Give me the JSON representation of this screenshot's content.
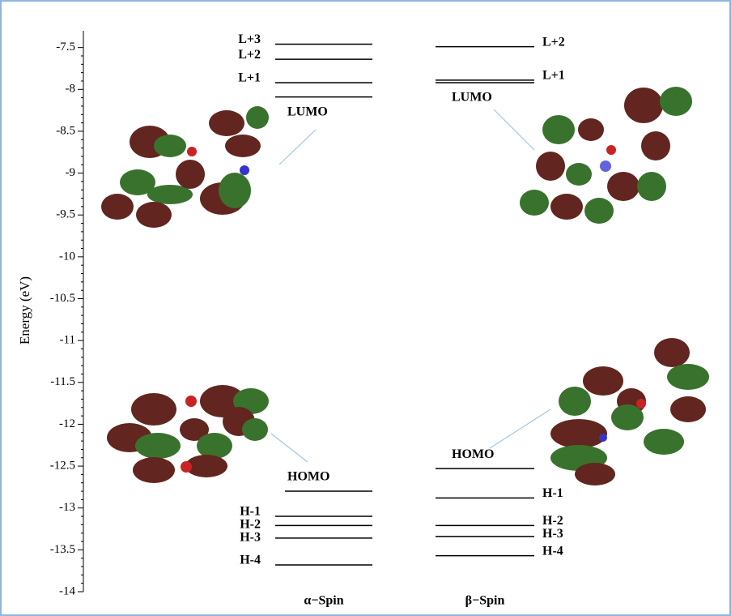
{
  "chart_data": {
    "type": "energy-levels",
    "y_label": "Energy (eV)",
    "ylim": [
      -14,
      -7.3
    ],
    "yticks": [
      -7.5,
      -8,
      -8.5,
      -9,
      -9.5,
      -10,
      -10.5,
      -11,
      -11.5,
      -12,
      -12.5,
      -13,
      -13.5,
      -14
    ],
    "series": [
      {
        "name": "α−Spin",
        "color": "#000000",
        "labels": [
          "L+3",
          "L+2",
          "L+1",
          "LUMO",
          "HOMO",
          "H-1",
          "H-2",
          "H-3",
          "H-4"
        ],
        "values": [
          -7.46,
          -7.64,
          -7.92,
          -8.09,
          -12.8,
          -13.1,
          -13.21,
          -13.36,
          -13.68
        ]
      },
      {
        "name": "β−Spin",
        "color": "#000000",
        "labels": [
          "L+2",
          "L+1",
          "LUMO",
          "HOMO",
          "H-1",
          "H-2",
          "H-3",
          "H-4"
        ],
        "values": [
          -7.49,
          -7.89,
          -7.92,
          -12.53,
          -12.88,
          -13.21,
          -13.34,
          -13.57
        ]
      }
    ]
  }
}
